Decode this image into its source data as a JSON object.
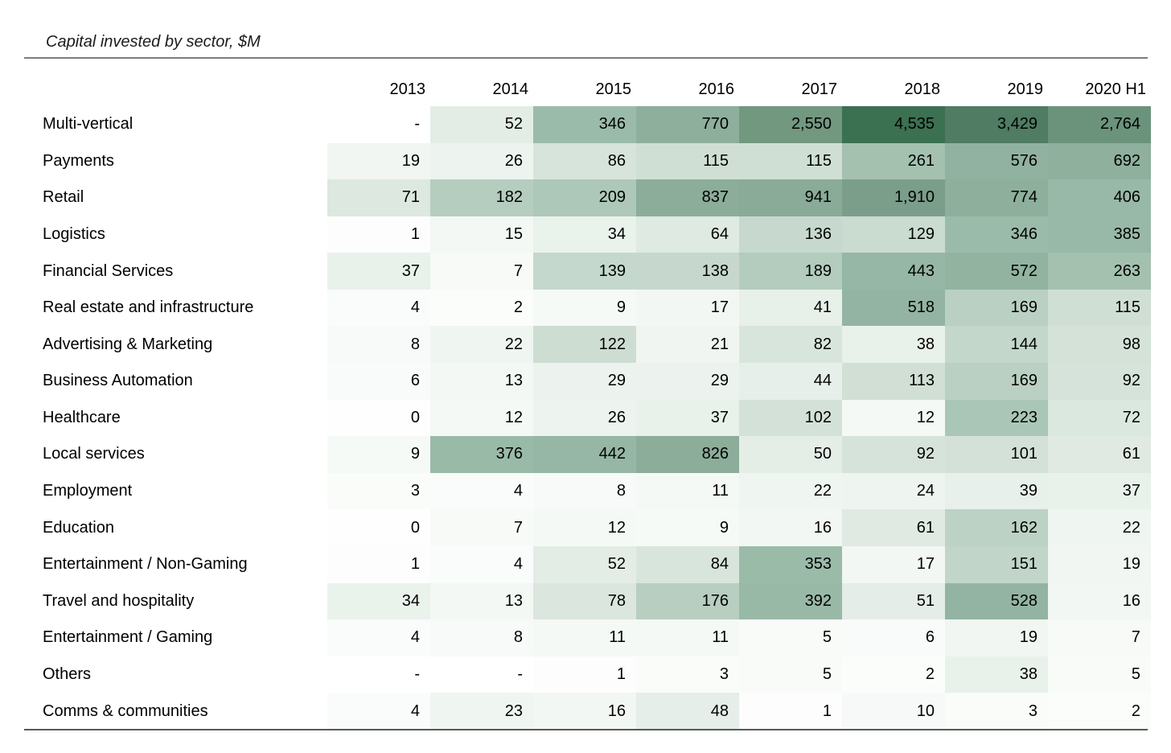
{
  "title": "Capital invested by sector, $M",
  "chart_data": {
    "type": "heatmap",
    "title": "Capital invested by sector, $M",
    "unit": "$M",
    "columns": [
      "2013",
      "2014",
      "2015",
      "2016",
      "2017",
      "2018",
      "2019",
      "2020 H1"
    ],
    "rows": [
      {
        "sector": "Multi-vertical",
        "values": [
          null,
          52,
          346,
          770,
          2550,
          4535,
          3429,
          2764
        ]
      },
      {
        "sector": "Payments",
        "values": [
          19,
          26,
          86,
          115,
          115,
          261,
          576,
          692
        ]
      },
      {
        "sector": "Retail",
        "values": [
          71,
          182,
          209,
          837,
          941,
          1910,
          774,
          406
        ]
      },
      {
        "sector": "Logistics",
        "values": [
          1,
          15,
          34,
          64,
          136,
          129,
          346,
          385
        ]
      },
      {
        "sector": "Financial Services",
        "values": [
          37,
          7,
          139,
          138,
          189,
          443,
          572,
          263
        ]
      },
      {
        "sector": "Real estate and infrastructure",
        "values": [
          4,
          2,
          9,
          17,
          41,
          518,
          169,
          115
        ]
      },
      {
        "sector": "Advertising & Marketing",
        "values": [
          8,
          22,
          122,
          21,
          82,
          38,
          144,
          98
        ]
      },
      {
        "sector": "Business Automation",
        "values": [
          6,
          13,
          29,
          29,
          44,
          113,
          169,
          92
        ]
      },
      {
        "sector": "Healthcare",
        "values": [
          0,
          12,
          26,
          37,
          102,
          12,
          223,
          72
        ]
      },
      {
        "sector": "Local services",
        "values": [
          9,
          376,
          442,
          826,
          50,
          92,
          101,
          61
        ]
      },
      {
        "sector": "Employment",
        "values": [
          3,
          4,
          8,
          11,
          22,
          24,
          39,
          37
        ]
      },
      {
        "sector": "Education",
        "values": [
          0,
          7,
          12,
          9,
          16,
          61,
          162,
          22
        ]
      },
      {
        "sector": "Entertainment / Non-Gaming",
        "values": [
          1,
          4,
          52,
          84,
          353,
          17,
          151,
          19
        ]
      },
      {
        "sector": "Travel and hospitality",
        "values": [
          34,
          13,
          78,
          176,
          392,
          51,
          528,
          16
        ]
      },
      {
        "sector": "Entertainment / Gaming",
        "values": [
          4,
          8,
          11,
          11,
          5,
          6,
          19,
          7
        ]
      },
      {
        "sector": "Others",
        "values": [
          null,
          null,
          1,
          3,
          5,
          2,
          38,
          5
        ]
      },
      {
        "sector": "Comms & communities",
        "values": [
          4,
          23,
          16,
          48,
          1,
          10,
          3,
          2
        ]
      }
    ],
    "missing_display": "-",
    "value_range": [
      0,
      4535
    ],
    "layout": {
      "grid": "off",
      "legend": "none",
      "cell_text_align": "right"
    },
    "colors": {
      "text": "#000000",
      "background": "#ffffff",
      "missing_cell": "#ffffff",
      "rule_top": "#7d7d7d",
      "rule_bottom": "#585858",
      "scale_min": "#fdfefd",
      "scale_max": "#3b7051",
      "scale_anchors": [
        [
          0,
          "#fdfefd"
        ],
        [
          3,
          "#fafcfa"
        ],
        [
          8,
          "#f7faf8"
        ],
        [
          14,
          "#f3f8f4"
        ],
        [
          22,
          "#eff5f1"
        ],
        [
          32,
          "#ebf2ed"
        ],
        [
          45,
          "#e6efe9"
        ],
        [
          55,
          "#e2ece5"
        ],
        [
          70,
          "#dce8e0"
        ],
        [
          90,
          "#d6e3da"
        ],
        [
          110,
          "#d2e0d6"
        ],
        [
          135,
          "#c7d9ce"
        ],
        [
          165,
          "#bbd1c4"
        ],
        [
          200,
          "#afc9ba"
        ],
        [
          250,
          "#a5c2b1"
        ],
        [
          320,
          "#9dbcab"
        ],
        [
          420,
          "#97b8a6"
        ],
        [
          550,
          "#92b3a1"
        ],
        [
          700,
          "#8eb09d"
        ],
        [
          900,
          "#8aac99"
        ],
        [
          1200,
          "#84a793"
        ],
        [
          1900,
          "#7a9e8a"
        ],
        [
          2500,
          "#739981"
        ],
        [
          2800,
          "#6a927b"
        ],
        [
          3100,
          "#5d8870"
        ],
        [
          3450,
          "#4e7b62"
        ],
        [
          4535,
          "#3b7051"
        ]
      ]
    }
  }
}
